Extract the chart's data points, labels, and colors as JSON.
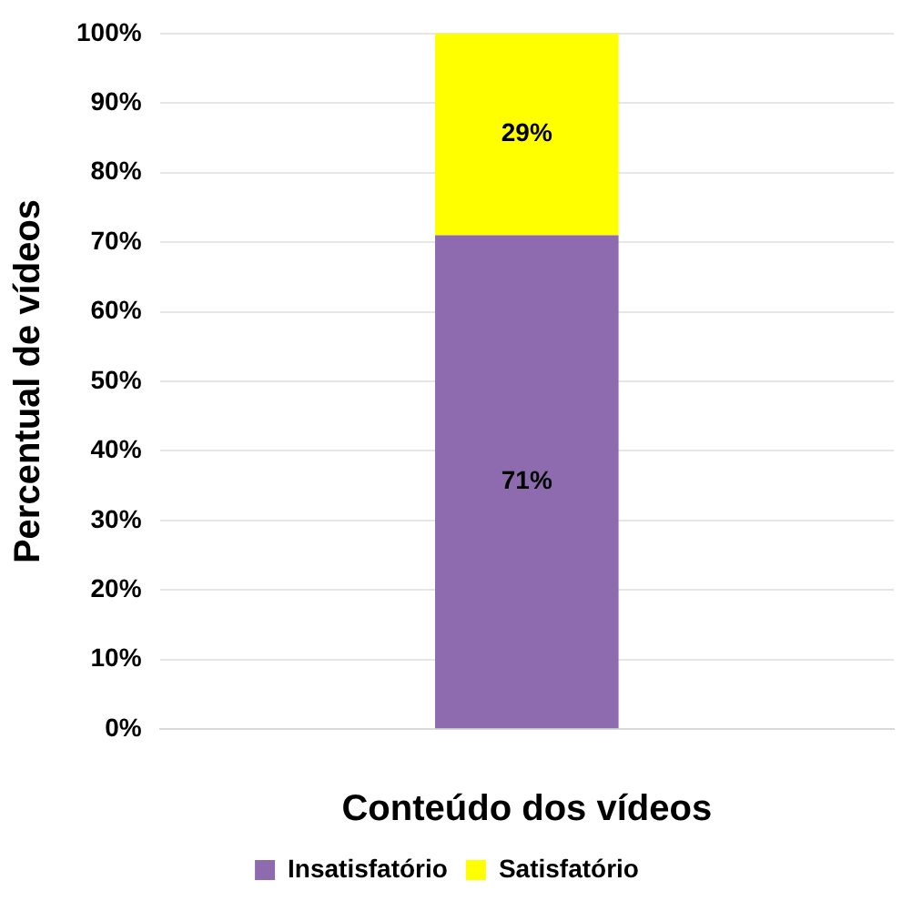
{
  "chart_data": {
    "type": "bar",
    "stacked": true,
    "xlabel": "Conteúdo dos vídeos",
    "ylabel": "Percentual de vídeos",
    "categories": [
      null
    ],
    "series": [
      {
        "name": "Insatisfatório",
        "color": "#8e6bae",
        "values": [
          71
        ],
        "value_labels": [
          "71%"
        ]
      },
      {
        "name": "Satisfatório",
        "color": "#ffff00",
        "values": [
          29
        ],
        "value_labels": [
          "29%"
        ]
      }
    ],
    "ylim": [
      0,
      100
    ],
    "yticks": [
      {
        "value": 0,
        "label": "0%"
      },
      {
        "value": 10,
        "label": "10%"
      },
      {
        "value": 20,
        "label": "20%"
      },
      {
        "value": 30,
        "label": "30%"
      },
      {
        "value": 40,
        "label": "40%"
      },
      {
        "value": 50,
        "label": "50%"
      },
      {
        "value": 60,
        "label": "60%"
      },
      {
        "value": 70,
        "label": "70%"
      },
      {
        "value": 80,
        "label": "80%"
      },
      {
        "value": 90,
        "label": "90%"
      },
      {
        "value": 100,
        "label": "100%"
      }
    ],
    "grid": "y",
    "legend": "bottom"
  }
}
